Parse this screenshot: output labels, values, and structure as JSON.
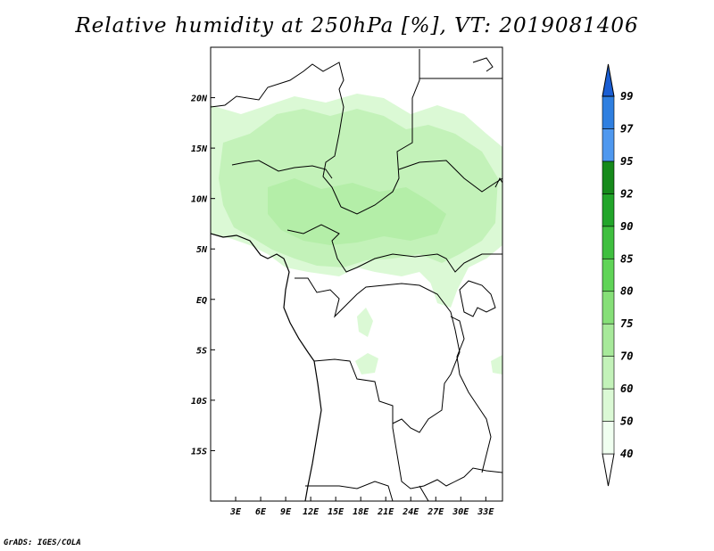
{
  "title": "Relative humidity at 250hPa [%], VT: 2019081406",
  "credit": "GrADS: IGES/COLA",
  "colors": {
    "rh_40": "#f0fff0",
    "rh_50": "#dbf9d5",
    "rh_60": "#c3f2b9",
    "rh_70": "#a7e99a",
    "rh_75": "#86df78",
    "rh_80": "#60d457",
    "rh_85": "#3fbf3f",
    "rh_90": "#22a52a",
    "rh_92": "#168a1b",
    "rh_95": "#4f98ef",
    "rh_97": "#2f7fe0",
    "rh_99": "#1a5ed3"
  },
  "chart_data": {
    "type": "heatmap",
    "title": "Relative humidity at 250hPa [%], VT: 2019081406",
    "x_ticks": [
      "3E",
      "6E",
      "9E",
      "12E",
      "15E",
      "18E",
      "21E",
      "24E",
      "27E",
      "30E",
      "33E"
    ],
    "x_tick_values": [
      3,
      6,
      9,
      12,
      15,
      18,
      21,
      24,
      27,
      30,
      33
    ],
    "y_ticks": [
      "20N",
      "15N",
      "10N",
      "5N",
      "EQ",
      "5S",
      "10S",
      "15S"
    ],
    "y_tick_values": [
      20,
      15,
      10,
      5,
      0,
      -5,
      -10,
      -15
    ],
    "xlim": [
      0,
      35
    ],
    "ylim": [
      -20,
      25
    ],
    "colorbar": {
      "levels": [
        "40",
        "50",
        "60",
        "70",
        "75",
        "80",
        "85",
        "90",
        "92",
        "95",
        "97",
        "99"
      ],
      "level_values": [
        40,
        50,
        60,
        70,
        75,
        80,
        85,
        90,
        92,
        95,
        97,
        99
      ],
      "colors": [
        "#f0fff0",
        "#dbf9d5",
        "#c3f2b9",
        "#a7e99a",
        "#86df78",
        "#60d457",
        "#3fbf3f",
        "#22a52a",
        "#168a1b",
        "#4f98ef",
        "#2f7fe0",
        "#1a5ed3"
      ]
    },
    "humid_regions_description_free": true,
    "regions": [
      {
        "level": 50,
        "lon": [
          0,
          35
        ],
        "lat": [
          2,
          19
        ]
      },
      {
        "level": 60,
        "lon": [
          3,
          33
        ],
        "lat": [
          4,
          17
        ]
      },
      {
        "level": 50,
        "lon": [
          17,
          20
        ],
        "lat": [
          -8,
          -2
        ]
      },
      {
        "level": 50,
        "lon": [
          24,
          30
        ],
        "lat": [
          -2,
          4
        ]
      },
      {
        "level": 50,
        "lon": [
          33,
          35
        ],
        "lat": [
          -8,
          -5
        ]
      }
    ]
  }
}
